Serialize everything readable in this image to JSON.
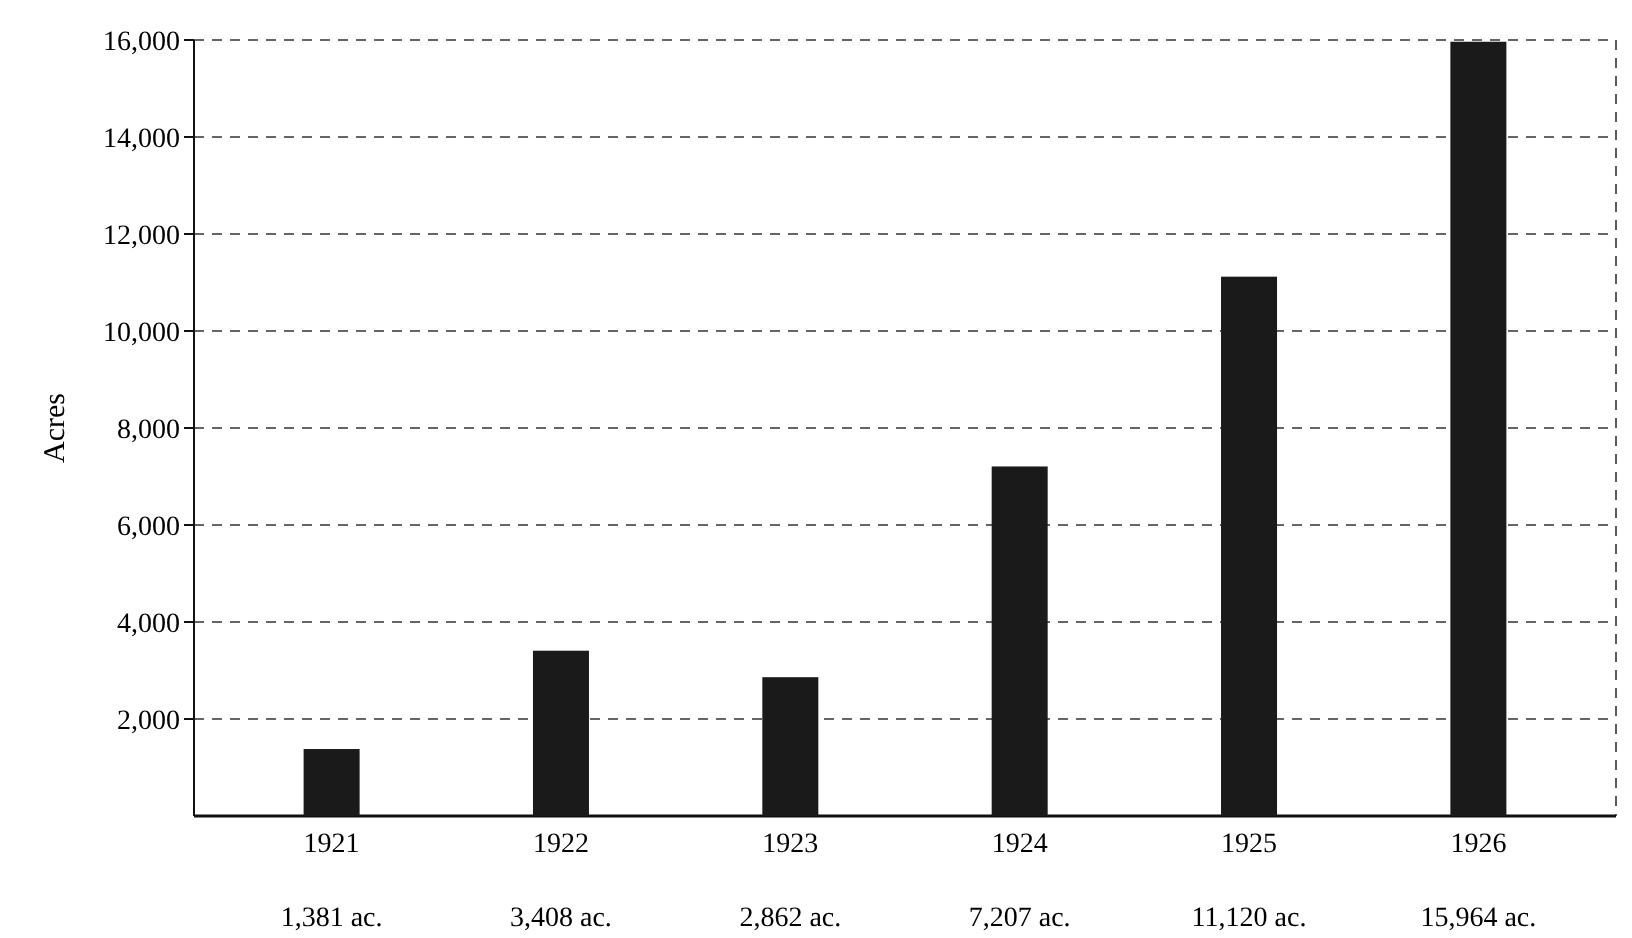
{
  "chart_data": {
    "type": "bar",
    "ylabel": "Acres",
    "categories": [
      "1921",
      "1922",
      "1923",
      "1924",
      "1925",
      "1926"
    ],
    "values": [
      1381,
      3408,
      2862,
      7207,
      11120,
      15964
    ],
    "value_labels": [
      "1,381 ac.",
      "3,408 ac.",
      "2,862 ac.",
      "7,207 ac.",
      "11,120 ac.",
      "15,964 ac."
    ],
    "color": "#1a1a1a",
    "ylim": [
      0,
      16000
    ],
    "yticks": [
      {
        "value": 2000,
        "label": "2,000"
      },
      {
        "value": 4000,
        "label": "4,000"
      },
      {
        "value": 6000,
        "label": "6,000"
      },
      {
        "value": 8000,
        "label": "8,000"
      },
      {
        "value": 10000,
        "label": "10,000"
      },
      {
        "value": 12000,
        "label": "12,000"
      },
      {
        "value": 14000,
        "label": "14,000"
      },
      {
        "value": 16000,
        "label": "16,000"
      }
    ],
    "grid": "y",
    "line_style": "dashed"
  }
}
